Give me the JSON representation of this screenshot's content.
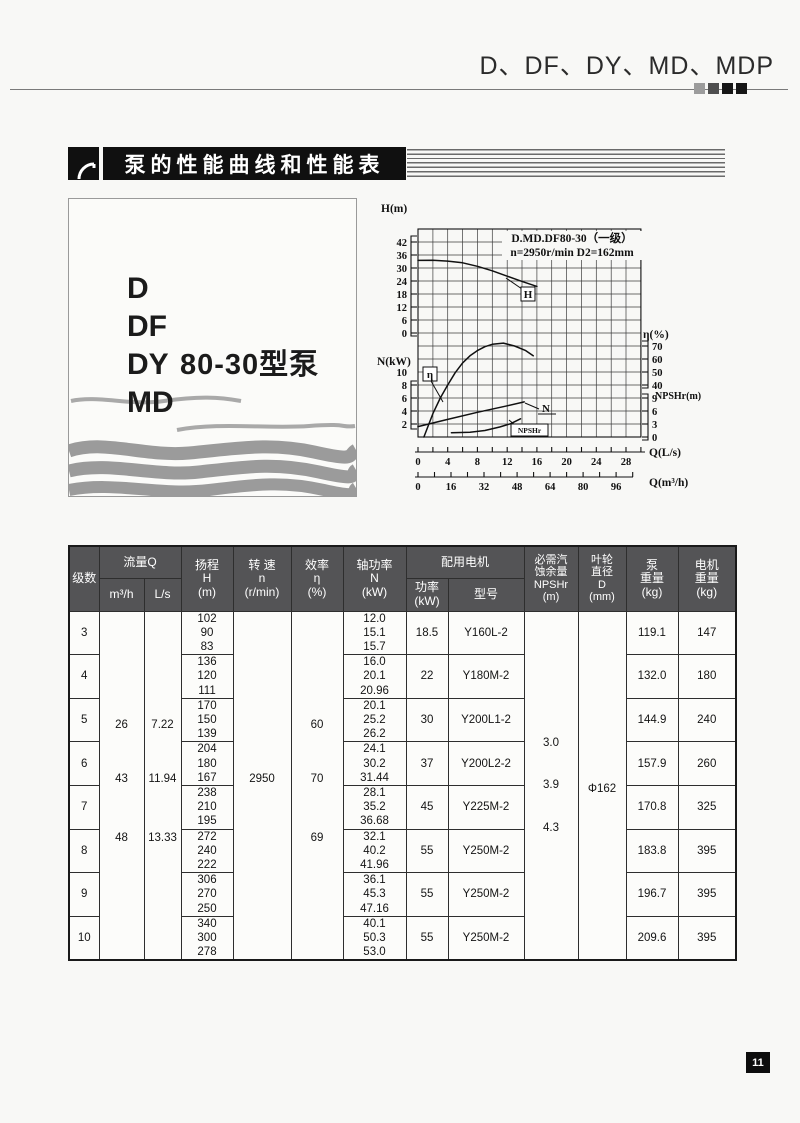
{
  "page": {
    "number": "11"
  },
  "header": {
    "title": "D、DF、DY、MD、MDP"
  },
  "banner": {
    "title": "泵的性能曲线和性能表"
  },
  "figure_box": {
    "models": [
      "D",
      "DF",
      "DY",
      "MD"
    ],
    "series_label": "80-30型泵"
  },
  "chart_data": {
    "type": "line",
    "title": "D.MD.DF80-30（一级）",
    "subtitle": "n=2950r/min  D2=162mm",
    "grid": true,
    "axes": {
      "h": {
        "label": "H(m)",
        "ticks": [
          42,
          36,
          30,
          24,
          18,
          12,
          6,
          0
        ]
      },
      "n": {
        "label": "N(kW)",
        "ticks": [
          10,
          8,
          6,
          4,
          2
        ]
      },
      "eta": {
        "label": "η(%)",
        "ticks": [
          70,
          60,
          50,
          40
        ]
      },
      "npshr": {
        "label": "NPSHr(m)",
        "ticks": [
          9,
          6,
          3,
          0
        ]
      },
      "q_ls": {
        "label": "Q(L/s)",
        "ticks": [
          0,
          4,
          8,
          12,
          16,
          20,
          24,
          28
        ],
        "range": [
          0,
          30
        ]
      },
      "q_m3h": {
        "label": "Q(m³/h)",
        "ticks": [
          0,
          16,
          32,
          48,
          64,
          80,
          96
        ]
      }
    },
    "series": [
      {
        "name": "H",
        "scale": "H",
        "x_unit": "L/s",
        "y_unit": "m",
        "points": [
          [
            0,
            33.5
          ],
          [
            2,
            33.6
          ],
          [
            4,
            33.2
          ],
          [
            6,
            32.4
          ],
          [
            8,
            30.8
          ],
          [
            10,
            28.7
          ],
          [
            12,
            26.2
          ],
          [
            14,
            23.8
          ],
          [
            16,
            21.5
          ]
        ]
      },
      {
        "name": "η",
        "scale": "ETA",
        "x_unit": "L/s",
        "y_unit": "%",
        "points": [
          [
            0.8,
            0
          ],
          [
            2,
            18
          ],
          [
            3,
            30
          ],
          [
            4,
            40
          ],
          [
            5,
            49.5
          ],
          [
            6,
            57
          ],
          [
            7,
            62.5
          ],
          [
            8,
            66.5
          ],
          [
            9,
            69.5
          ],
          [
            10,
            71.3
          ],
          [
            11.5,
            72.2
          ],
          [
            13,
            70
          ],
          [
            14.5,
            66.5
          ],
          [
            15.5,
            62.5
          ]
        ]
      },
      {
        "name": "N",
        "scale": "N",
        "x_unit": "L/s",
        "y_unit": "kW",
        "points": [
          [
            0,
            1.6
          ],
          [
            4,
            2.7
          ],
          [
            8,
            3.8
          ],
          [
            12,
            4.8
          ],
          [
            14.3,
            5.4
          ]
        ]
      },
      {
        "name": "NPSHr",
        "scale": "NP",
        "x_unit": "L/s",
        "y_unit": "m",
        "points": [
          [
            4.5,
            1.0
          ],
          [
            7,
            1.1
          ],
          [
            9,
            1.5
          ],
          [
            11,
            2.3
          ],
          [
            12.5,
            3.1
          ],
          [
            13.8,
            4.2
          ]
        ]
      }
    ]
  },
  "table": {
    "headers": {
      "stages": "级数",
      "flow_group": "流量Q",
      "flow_m3h": "m³/h",
      "flow_ls": "L/s",
      "head": "扬程\nH\n(m)",
      "speed": "转 速\nn\n(r/min)",
      "efficiency": "效率\nη\n(%)",
      "shaft_power": "轴功率\nN\n(kW)",
      "motor_group": "配用电机",
      "motor_power": "功率\n(kW)",
      "motor_model": "型号",
      "npshr": "必需汽\n蚀余量\nNPSHr\n(m)",
      "impeller": "叶轮\n直径\nD\n(mm)",
      "pump_weight": "泵\n重量\n(kg)",
      "motor_weight": "电机\n重量\n(kg)"
    },
    "shared": {
      "flow_m3h": [
        "26",
        "43",
        "48"
      ],
      "flow_ls": [
        "7.22",
        "11.94",
        "13.33"
      ],
      "speed": "2950",
      "efficiency": [
        "60",
        "70",
        "69"
      ],
      "npshr": [
        "3.0",
        "3.9",
        "4.3"
      ],
      "impeller_diameter": "Φ162"
    },
    "rows": [
      {
        "stages": "3",
        "head": [
          "102",
          "90",
          "83"
        ],
        "shaft_power": [
          "12.0",
          "15.1",
          "15.7"
        ],
        "motor_power": "18.5",
        "motor_model": "Y160L-2",
        "pump_weight": "119.1",
        "motor_weight": "147"
      },
      {
        "stages": "4",
        "head": [
          "136",
          "120",
          "111"
        ],
        "shaft_power": [
          "16.0",
          "20.1",
          "20.96"
        ],
        "motor_power": "22",
        "motor_model": "Y180M-2",
        "pump_weight": "132.0",
        "motor_weight": "180"
      },
      {
        "stages": "5",
        "head": [
          "170",
          "150",
          "139"
        ],
        "shaft_power": [
          "20.1",
          "25.2",
          "26.2"
        ],
        "motor_power": "30",
        "motor_model": "Y200L1-2",
        "pump_weight": "144.9",
        "motor_weight": "240"
      },
      {
        "stages": "6",
        "head": [
          "204",
          "180",
          "167"
        ],
        "shaft_power": [
          "24.1",
          "30.2",
          "31.44"
        ],
        "motor_power": "37",
        "motor_model": "Y200L2-2",
        "pump_weight": "157.9",
        "motor_weight": "260"
      },
      {
        "stages": "7",
        "head": [
          "238",
          "210",
          "195"
        ],
        "shaft_power": [
          "28.1",
          "35.2",
          "36.68"
        ],
        "motor_power": "45",
        "motor_model": "Y225M-2",
        "pump_weight": "170.8",
        "motor_weight": "325"
      },
      {
        "stages": "8",
        "head": [
          "272",
          "240",
          "222"
        ],
        "shaft_power": [
          "32.1",
          "40.2",
          "41.96"
        ],
        "motor_power": "55",
        "motor_model": "Y250M-2",
        "pump_weight": "183.8",
        "motor_weight": "395"
      },
      {
        "stages": "9",
        "head": [
          "306",
          "270",
          "250"
        ],
        "shaft_power": [
          "36.1",
          "45.3",
          "47.16"
        ],
        "motor_power": "55",
        "motor_model": "Y250M-2",
        "pump_weight": "196.7",
        "motor_weight": "395"
      },
      {
        "stages": "10",
        "head": [
          "340",
          "300",
          "278"
        ],
        "shaft_power": [
          "40.1",
          "50.3",
          "53.0"
        ],
        "motor_power": "55",
        "motor_model": "Y250M-2",
        "pump_weight": "209.6",
        "motor_weight": "395"
      }
    ]
  }
}
